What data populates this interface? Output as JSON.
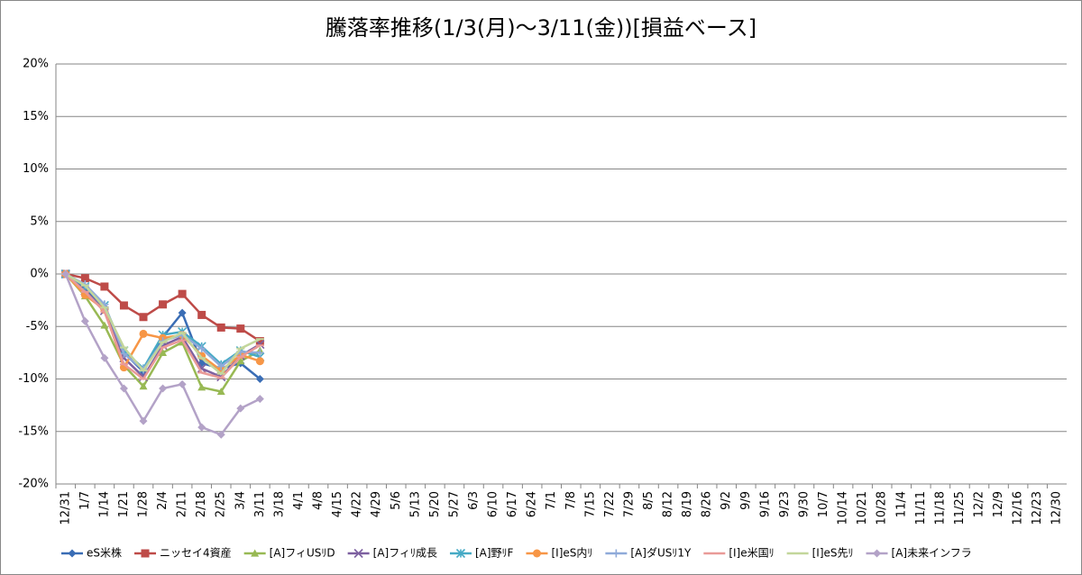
{
  "chart_data": {
    "type": "line",
    "title": "騰落率推移(1/3(月)～3/11(金))[損益ベース]",
    "categories": [
      "12/31",
      "1/7",
      "1/14",
      "1/21",
      "1/28",
      "2/4",
      "2/11",
      "2/18",
      "2/25",
      "3/4",
      "3/11",
      "3/18",
      "4/1",
      "4/8",
      "4/15",
      "4/22",
      "4/29",
      "5/6",
      "5/13",
      "5/20",
      "5/27",
      "6/3",
      "6/10",
      "6/17",
      "6/24",
      "7/1",
      "7/8",
      "7/15",
      "7/22",
      "7/29",
      "8/5",
      "8/12",
      "8/19",
      "8/26",
      "9/2",
      "9/9",
      "9/16",
      "9/23",
      "9/30",
      "10/7",
      "10/14",
      "10/21",
      "10/28",
      "11/4",
      "11/11",
      "11/18",
      "11/25",
      "12/2",
      "12/9",
      "12/16",
      "12/23",
      "12/30"
    ],
    "ylim": [
      -20,
      20
    ],
    "yticks": [
      {
        "value": -20,
        "label": "-20%"
      },
      {
        "value": -15,
        "label": "-15%"
      },
      {
        "value": -10,
        "label": "-10%"
      },
      {
        "value": -5,
        "label": "-5%"
      },
      {
        "value": 0,
        "label": "0%"
      },
      {
        "value": 5,
        "label": "5%"
      },
      {
        "value": 10,
        "label": "10%"
      },
      {
        "value": 15,
        "label": "15%"
      },
      {
        "value": 20,
        "label": "20%"
      }
    ],
    "grid": true,
    "legend": "bottom",
    "series": [
      {
        "name": "eS米株",
        "color": "#3a6db5",
        "marker": "diamond",
        "values": [
          0,
          -1.3,
          -3.2,
          -7.5,
          -9.3,
          -6.0,
          -3.7,
          -8.5,
          -9.0,
          -8.5,
          -10.0,
          null,
          null,
          null,
          null,
          null,
          null,
          null,
          null,
          null,
          null,
          null,
          null,
          null,
          null,
          null,
          null,
          null,
          null,
          null,
          null,
          null,
          null,
          null,
          null,
          null,
          null,
          null,
          null,
          null,
          null,
          null,
          null,
          null,
          null,
          null,
          null,
          null,
          null,
          null,
          null,
          null
        ]
      },
      {
        "name": "ニッセイ4資産",
        "color": "#be4b48",
        "marker": "square",
        "values": [
          0,
          -0.4,
          -1.2,
          -3.0,
          -4.1,
          -2.9,
          -1.9,
          -3.9,
          -5.1,
          -5.2,
          -6.4,
          null,
          null,
          null,
          null,
          null,
          null,
          null,
          null,
          null,
          null,
          null,
          null,
          null,
          null,
          null,
          null,
          null,
          null,
          null,
          null,
          null,
          null,
          null,
          null,
          null,
          null,
          null,
          null,
          null,
          null,
          null,
          null,
          null,
          null,
          null,
          null,
          null,
          null,
          null,
          null,
          null
        ]
      },
      {
        "name": "[A]フィUSﾘD",
        "color": "#98b954",
        "marker": "triangle",
        "values": [
          0,
          -2.1,
          -4.9,
          -8.7,
          -10.7,
          -7.5,
          -6.5,
          -10.8,
          -11.2,
          -8.3,
          -7.3,
          null,
          null,
          null,
          null,
          null,
          null,
          null,
          null,
          null,
          null,
          null,
          null,
          null,
          null,
          null,
          null,
          null,
          null,
          null,
          null,
          null,
          null,
          null,
          null,
          null,
          null,
          null,
          null,
          null,
          null,
          null,
          null,
          null,
          null,
          null,
          null,
          null,
          null,
          null,
          null,
          null
        ]
      },
      {
        "name": "[A]フィﾘ成長",
        "color": "#7d60a0",
        "marker": "x",
        "values": [
          0,
          -1.6,
          -3.5,
          -8.0,
          -9.8,
          -6.8,
          -6.0,
          -9.0,
          -9.8,
          -7.8,
          -6.7,
          null,
          null,
          null,
          null,
          null,
          null,
          null,
          null,
          null,
          null,
          null,
          null,
          null,
          null,
          null,
          null,
          null,
          null,
          null,
          null,
          null,
          null,
          null,
          null,
          null,
          null,
          null,
          null,
          null,
          null,
          null,
          null,
          null,
          null,
          null,
          null,
          null,
          null,
          null,
          null,
          null
        ]
      },
      {
        "name": "[A]野ﾘF",
        "color": "#46aac5",
        "marker": "star",
        "values": [
          0,
          -1.2,
          -3.0,
          -7.3,
          -9.0,
          -5.8,
          -5.5,
          -6.9,
          -8.6,
          -7.3,
          -7.9,
          null,
          null,
          null,
          null,
          null,
          null,
          null,
          null,
          null,
          null,
          null,
          null,
          null,
          null,
          null,
          null,
          null,
          null,
          null,
          null,
          null,
          null,
          null,
          null,
          null,
          null,
          null,
          null,
          null,
          null,
          null,
          null,
          null,
          null,
          null,
          null,
          null,
          null,
          null,
          null,
          null
        ]
      },
      {
        "name": "[I]eS内ﾘ",
        "color": "#f79646",
        "marker": "circle",
        "values": [
          0,
          -2.0,
          -3.4,
          -8.9,
          -5.7,
          -6.1,
          -5.8,
          -7.8,
          -9.2,
          -7.7,
          -8.3,
          null,
          null,
          null,
          null,
          null,
          null,
          null,
          null,
          null,
          null,
          null,
          null,
          null,
          null,
          null,
          null,
          null,
          null,
          null,
          null,
          null,
          null,
          null,
          null,
          null,
          null,
          null,
          null,
          null,
          null,
          null,
          null,
          null,
          null,
          null,
          null,
          null,
          null,
          null,
          null,
          null
        ]
      },
      {
        "name": "[A]ダUSﾘ1Y",
        "color": "#8faad9",
        "marker": "plus",
        "values": [
          0,
          -1.0,
          -2.9,
          -7.6,
          -9.1,
          -6.4,
          -5.8,
          -7.1,
          -8.8,
          -7.4,
          -7.5,
          null,
          null,
          null,
          null,
          null,
          null,
          null,
          null,
          null,
          null,
          null,
          null,
          null,
          null,
          null,
          null,
          null,
          null,
          null,
          null,
          null,
          null,
          null,
          null,
          null,
          null,
          null,
          null,
          null,
          null,
          null,
          null,
          null,
          null,
          null,
          null,
          null,
          null,
          null,
          null,
          null
        ]
      },
      {
        "name": "[I]e米国ﾘ",
        "color": "#e99a98",
        "marker": "dash",
        "values": [
          0,
          -1.7,
          -3.6,
          -8.6,
          -10.0,
          -7.0,
          -6.3,
          -9.4,
          -9.9,
          -7.9,
          -6.8,
          null,
          null,
          null,
          null,
          null,
          null,
          null,
          null,
          null,
          null,
          null,
          null,
          null,
          null,
          null,
          null,
          null,
          null,
          null,
          null,
          null,
          null,
          null,
          null,
          null,
          null,
          null,
          null,
          null,
          null,
          null,
          null,
          null,
          null,
          null,
          null,
          null,
          null,
          null,
          null,
          null
        ]
      },
      {
        "name": "[I]eS先ﾘ",
        "color": "#c3d69b",
        "marker": "dash",
        "values": [
          0,
          -1.1,
          -3.2,
          -7.0,
          -9.2,
          -6.5,
          -5.6,
          -8.0,
          -9.5,
          -7.1,
          -6.2,
          null,
          null,
          null,
          null,
          null,
          null,
          null,
          null,
          null,
          null,
          null,
          null,
          null,
          null,
          null,
          null,
          null,
          null,
          null,
          null,
          null,
          null,
          null,
          null,
          null,
          null,
          null,
          null,
          null,
          null,
          null,
          null,
          null,
          null,
          null,
          null,
          null,
          null,
          null,
          null,
          null
        ]
      },
      {
        "name": "[A]未来インフラ",
        "color": "#b3a2c7",
        "marker": "diamond",
        "values": [
          0,
          -4.5,
          -8.0,
          -10.9,
          -14.0,
          -10.9,
          -10.5,
          -14.6,
          -15.3,
          -12.8,
          -11.9,
          null,
          null,
          null,
          null,
          null,
          null,
          null,
          null,
          null,
          null,
          null,
          null,
          null,
          null,
          null,
          null,
          null,
          null,
          null,
          null,
          null,
          null,
          null,
          null,
          null,
          null,
          null,
          null,
          null,
          null,
          null,
          null,
          null,
          null,
          null,
          null,
          null,
          null,
          null,
          null,
          null
        ]
      }
    ]
  }
}
